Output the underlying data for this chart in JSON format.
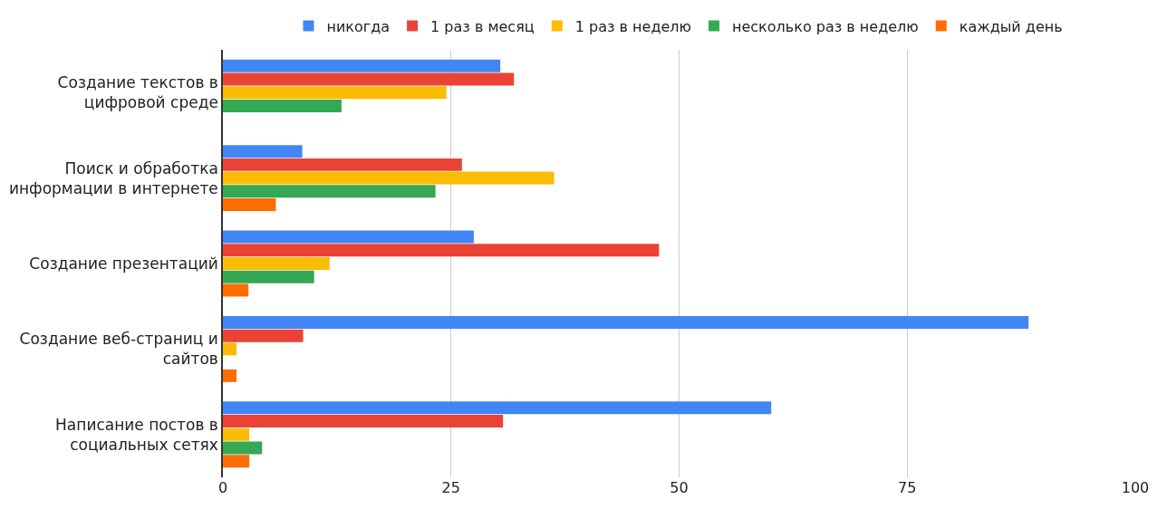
{
  "chart_data": {
    "type": "bar",
    "orientation": "horizontal",
    "categories": [
      "Создание текстов в цифровой среде",
      "Поиск и обработка информации в интернете",
      "Создание презентаций",
      "Создание веб-страниц и сайтов",
      "Написание постов в социальных сетях"
    ],
    "series": [
      {
        "name": "никогда",
        "color": "#4285f4",
        "values": [
          30.4,
          8.7,
          27.5,
          88.3,
          60.1
        ]
      },
      {
        "name": "1 раз в месяц",
        "color": "#ea4335",
        "values": [
          31.9,
          26.2,
          47.8,
          8.8,
          30.7
        ]
      },
      {
        "name": "1 раз в неделю",
        "color": "#fbbc04",
        "values": [
          24.5,
          36.3,
          11.7,
          1.5,
          2.9
        ]
      },
      {
        "name": "несколько раз в неделю",
        "color": "#34a853",
        "values": [
          13.0,
          23.3,
          10.0,
          null,
          4.3
        ]
      },
      {
        "name": "каждый день",
        "color": "#ff6d01",
        "values": [
          null,
          5.8,
          2.8,
          1.5,
          2.9
        ]
      }
    ],
    "xlim": [
      0,
      100
    ],
    "xticks": [
      0,
      25,
      50,
      75,
      100
    ],
    "grid": "x",
    "legend": "top"
  }
}
